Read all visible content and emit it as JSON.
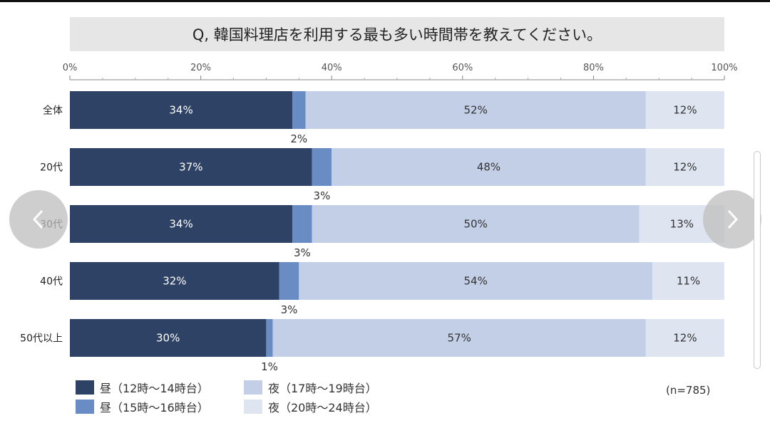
{
  "title": "Q, 韓国料理店を利用する最も多い時間帯を教えてください。",
  "note": "(n=785)",
  "chart_data": {
    "type": "bar",
    "orientation": "horizontal",
    "stacked": true,
    "xlim": [
      0,
      100
    ],
    "x_ticks": [
      "0%",
      "20%",
      "40%",
      "60%",
      "80%",
      "100%"
    ],
    "categories": [
      "全体",
      "20代",
      "30代",
      "40代",
      "50代以上"
    ],
    "series": [
      {
        "name": "昼（12時〜14時台）",
        "color": "#2e4266",
        "values": [
          34,
          37,
          34,
          32,
          30
        ]
      },
      {
        "name": "昼（15時〜16時台）",
        "color": "#6a8cc4",
        "values": [
          2,
          3,
          3,
          3,
          1
        ]
      },
      {
        "name": "夜（17時〜19時台）",
        "color": "#c3cfe6",
        "values": [
          52,
          48,
          50,
          54,
          57
        ]
      },
      {
        "name": "夜（20時〜24時台）",
        "color": "#dfe5f0",
        "values": [
          12,
          12,
          13,
          11,
          12
        ]
      }
    ],
    "legend_position": "bottom-left"
  },
  "ui": {
    "prev_icon": "chevron-left-icon",
    "next_icon": "chevron-right-icon"
  }
}
